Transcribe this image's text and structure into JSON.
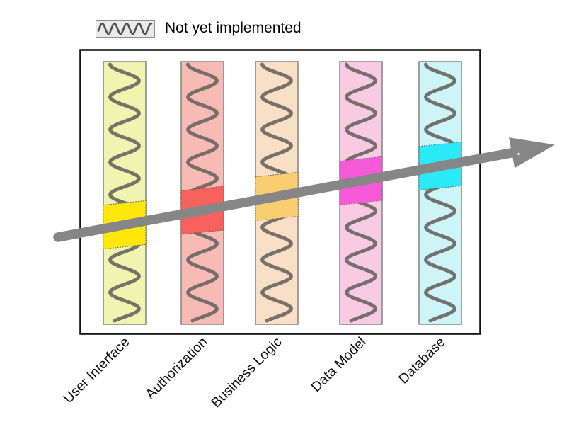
{
  "legend": {
    "label": "Not yet implemented",
    "swatch_icon": "squiggle-pattern",
    "swatch_bg": "#EAEAEA",
    "swatch_border": "#8E8E8E",
    "squiggle_color": "#4F4F4F"
  },
  "diagram": {
    "layers": [
      {
        "label": "User Interface",
        "column_color": "#EFF5AF",
        "highlight_color": "#FFE70D"
      },
      {
        "label": "Authorization",
        "column_color": "#F8BAB4",
        "highlight_color": "#F9625C"
      },
      {
        "label": "Business Logic",
        "column_color": "#F8DFC6",
        "highlight_color": "#F8CE71"
      },
      {
        "label": "Data Model",
        "column_color": "#F9CBE3",
        "highlight_color": "#F75AD8"
      },
      {
        "label": "Database",
        "column_color": "#CDF4F6",
        "highlight_color": "#2BE9F6"
      }
    ],
    "colors": {
      "arrow": "#868686",
      "wave": "#6B6762",
      "frame_border": "#141414",
      "column_border": "#8A8A8A",
      "highlight_dash": "#5A5A5A"
    }
  }
}
